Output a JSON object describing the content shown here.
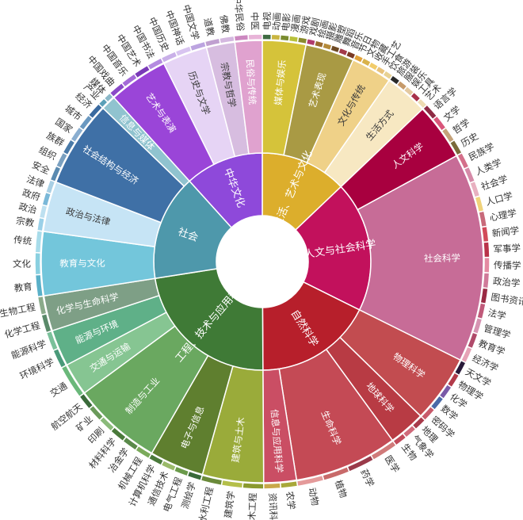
{
  "chart_data": {
    "type": "sunburst",
    "title": "",
    "center": [
      {
        "name": "生活、艺术与文化",
        "color": "#dcae2c",
        "children": [
          {
            "name": "媒体与娱乐",
            "color": "#d5c33a",
            "size": 3.2,
            "children": [
              {
                "name": "电视",
                "color": "#3f6b42"
              },
              {
                "name": "动画",
                "color": "#c9b540"
              },
              {
                "name": "电影",
                "color": "#7a8c2f"
              },
              {
                "name": "漫画",
                "color": "#b8c13a"
              },
              {
                "name": "游戏",
                "color": "#8a8a2e"
              }
            ]
          },
          {
            "name": "艺术表现",
            "color": "#a99a44",
            "size": 3.6,
            "children": [
              {
                "name": "戏剧",
                "color": "#b03c6e"
              },
              {
                "name": "绘画",
                "color": "#9a6a2e"
              },
              {
                "name": "摄影",
                "color": "#b48a3a"
              },
              {
                "name": "雕塑",
                "color": "#6e4a24"
              },
              {
                "name": "舞蹈",
                "color": "#a23a4a"
              },
              {
                "name": "音乐",
                "color": "#7a3a24"
              }
            ]
          },
          {
            "name": "文化与传统",
            "color": "#efd188",
            "size": 3.0,
            "children": [
              {
                "name": "节日",
                "color": "#e0a23a"
              },
              {
                "name": "文物",
                "color": "#d9b24a"
              },
              {
                "name": "收藏",
                "color": "#f2cc6a"
              },
              {
                "name": "手工艺",
                "color": "#e8c27a"
              },
              {
                "name": "饮食",
                "color": "#e8d294"
              }
            ]
          },
          {
            "name": "生活方式",
            "color": "#f7e8c2",
            "size": 3.2,
            "children": [
              {
                "name": "旅游",
                "color": "#2a2a2a"
              },
              {
                "name": "服装",
                "color": "#c69a6a"
              },
              {
                "name": "娱乐",
                "color": "#e4c9a0"
              },
              {
                "name": "工具",
                "color": "#a8324a"
              },
              {
                "name": "艺术",
                "color": "#eedcb2"
              }
            ]
          }
        ]
      },
      {
        "name": "人文与社会科学",
        "color": "#c2115c",
        "children": [
          {
            "name": "人文科学",
            "color": "#a8003f",
            "size": 4.2,
            "children": [
              {
                "name": "语言学",
                "color": "#8e2a44"
              },
              {
                "name": "文学",
                "color": "#d9567a"
              },
              {
                "name": "哲学",
                "color": "#c5a27a"
              },
              {
                "name": "历史",
                "color": "#7a6a3a"
              }
            ]
          },
          {
            "name": "社会科学",
            "color": "#c76c97",
            "size": 15.4,
            "children": [
              {
                "name": "民族学",
                "color": "#d46f8a"
              },
              {
                "name": "人类学",
                "color": "#d58aa8"
              },
              {
                "name": "社会学",
                "color": "#e8b0c0"
              },
              {
                "name": "人口学",
                "color": "#f0d27a"
              },
              {
                "name": "心理学",
                "color": "#c86a7a"
              },
              {
                "name": "新闻学",
                "color": "#d24a5a"
              },
              {
                "name": "军事学",
                "color": "#b9324a"
              },
              {
                "name": "传播学",
                "color": "#e48aa2"
              },
              {
                "name": "政治学",
                "color": "#d07a9a"
              },
              {
                "name": "图书资讯科学",
                "color": "#9a2a44"
              },
              {
                "name": "法学",
                "color": "#c05a7a"
              },
              {
                "name": "管理学",
                "color": "#d694b2"
              },
              {
                "name": "教育学",
                "color": "#b04a6a"
              },
              {
                "name": "经济学",
                "color": "#e6a2b6"
              }
            ]
          }
        ]
      },
      {
        "name": "自然科学",
        "color": "#b71f2b",
        "children": [
          {
            "name": "物理科学",
            "color": "#c24c50",
            "size": 5.0,
            "children": [
              {
                "name": "天文学",
                "color": "#2a1a3a"
              },
              {
                "name": "物理学",
                "color": "#b23a4a"
              },
              {
                "name": "化学",
                "color": "#7a5aa8"
              },
              {
                "name": "数学",
                "color": "#4a6aa8"
              },
              {
                "name": "密码学",
                "color": "#c85a6a"
              }
            ]
          },
          {
            "name": "地球科学",
            "color": "#b83b44",
            "size": 2.7,
            "children": [
              {
                "name": "地理",
                "color": "#a83a4a"
              },
              {
                "name": "气象学",
                "color": "#d06a7a"
              },
              {
                "name": "生物",
                "color": "#c24a5a"
              }
            ]
          },
          {
            "name": "生命科学",
            "color": "#c44a55",
            "size": 7.6,
            "children": [
              {
                "name": "医学",
                "color": "#d07a7a"
              },
              {
                "name": "药学",
                "color": "#9a3a4a"
              },
              {
                "name": "植物",
                "color": "#c86a6a"
              },
              {
                "name": "动物",
                "color": "#e49a9a"
              }
            ]
          },
          {
            "name": "信息与应用科学",
            "color": "#ca4e64",
            "size": 2.4,
            "children": [
              {
                "name": "农学",
                "color": "#a8a83a"
              },
              {
                "name": "资讯科学",
                "color": "#c9a84a"
              }
            ]
          }
        ]
      },
      {
        "name": "工程、技术与应用科学",
        "color": "#3f7a36",
        "children": [
          {
            "name": "建筑与土木",
            "color": "#9aab3a",
            "size": 4.5,
            "children": [
              {
                "name": "土木工程",
                "color": "#8a9a2e"
              },
              {
                "name": "建筑学",
                "color": "#b4bf4a"
              },
              {
                "name": "水利工程",
                "color": "#6a8a3a"
              }
            ]
          },
          {
            "name": "电子与信息",
            "color": "#5f7f2f",
            "size": 4.0,
            "children": [
              {
                "name": "测绘学",
                "color": "#3a6a3a"
              },
              {
                "name": "电气工程",
                "color": "#6a9a4a"
              },
              {
                "name": "通信技术",
                "color": "#9aba6a"
              },
              {
                "name": "计算机科学",
                "color": "#4a7a3a"
              }
            ]
          },
          {
            "name": "制造与工业",
            "color": "#6aa860",
            "size": 6.6,
            "children": [
              {
                "name": "机械工程",
                "color": "#7aaa5a"
              },
              {
                "name": "冶金学",
                "color": "#5a8a4a"
              },
              {
                "name": "材料科学",
                "color": "#4a7a3a"
              },
              {
                "name": "印刷",
                "color": "#8aba7a"
              },
              {
                "name": "矿业",
                "color": "#6a9a5a"
              },
              {
                "name": "航空航天",
                "color": "#3a6a3a"
              }
            ]
          },
          {
            "name": "交通与运输",
            "color": "#86c592",
            "size": 2.4,
            "children": [
              {
                "name": "交通",
                "color": "#6ab87a"
              }
            ]
          },
          {
            "name": "能源与环境",
            "color": "#5fb088",
            "size": 2.7,
            "children": [
              {
                "name": "环境科学",
                "color": "#4a9a7a"
              },
              {
                "name": "能源科学",
                "color": "#7ac09a"
              }
            ]
          },
          {
            "name": "化学与生命科学",
            "color": "#7e9f86",
            "size": 2.6,
            "children": [
              {
                "name": "化学工程",
                "color": "#5a8a6a"
              },
              {
                "name": "生物工程",
                "color": "#8aaa8a"
              }
            ]
          }
        ]
      },
      {
        "name": "社会",
        "color": "#4e98ab",
        "children": [
          {
            "name": "教育与文化",
            "color": "#73c6db",
            "size": 4.7,
            "children": [
              {
                "name": "教育",
                "color": "#5ab0c8"
              },
              {
                "name": "文化",
                "color": "#8ad0e0"
              },
              {
                "name": "传统",
                "color": "#a8dcea"
              }
            ]
          },
          {
            "name": "政治与法律",
            "color": "#c6e4f5",
            "size": 3.7,
            "children": [
              {
                "name": "宗教",
                "color": "#9ad0e8"
              },
              {
                "name": "政治",
                "color": "#bde0f0"
              },
              {
                "name": "政府",
                "color": "#7ab8d8"
              },
              {
                "name": "法律",
                "color": "#a8cfe4"
              }
            ]
          },
          {
            "name": "社会结构与经济",
            "color": "#3f70a6",
            "size": 6.4,
            "children": [
              {
                "name": "安全",
                "color": "#5a8ab0"
              },
              {
                "name": "组织",
                "color": "#7aa0c0"
              },
              {
                "name": "族群",
                "color": "#4a7aa8"
              },
              {
                "name": "国家",
                "color": "#8aaed0"
              },
              {
                "name": "城市",
                "color": "#6a98c0"
              },
              {
                "name": "经济",
                "color": "#3a6aa0"
              }
            ]
          },
          {
            "name": "信息与媒体",
            "color": "#90c3cf",
            "size": 1.1,
            "children": [
              {
                "name": "产业",
                "color": "#5aa0b8"
              },
              {
                "name": "媒体",
                "color": "#8ab8c8"
              }
            ]
          }
        ]
      },
      {
        "name": "中华文化",
        "color": "#8e49da",
        "children": [
          {
            "name": "艺术与表演",
            "color": "#9a45d8",
            "size": 4.4,
            "children": [
              {
                "name": "中国戏曲",
                "color": "#8a4ac8"
              },
              {
                "name": "中国音乐",
                "color": "#a46ad8"
              },
              {
                "name": "中国艺术",
                "color": "#7a3ab8"
              },
              {
                "name": "中国书法",
                "color": "#b48ae0"
              }
            ]
          },
          {
            "name": "历史与文学",
            "color": "#e6d4f5",
            "size": 3.3,
            "children": [
              {
                "name": "中国历史",
                "color": "#c9b0e8"
              },
              {
                "name": "中国神话",
                "color": "#d8c4f0"
              },
              {
                "name": "中国文学",
                "color": "#bca4e0"
              }
            ]
          },
          {
            "name": "宗教与哲学",
            "color": "#d7bde0",
            "size": 2.1,
            "children": [
              {
                "name": "道教",
                "color": "#c0a0d0"
              },
              {
                "name": "佛教",
                "color": "#d4b8e0"
              }
            ]
          },
          {
            "name": "民俗与传统",
            "color": "#e0a2cf",
            "size": 2.0,
            "children": [
              {
                "name": "中华民俗",
                "color": "#cc88c0"
              },
              {
                "name": "中医",
                "color": "#e8b4d8"
              }
            ]
          }
        ]
      }
    ]
  }
}
